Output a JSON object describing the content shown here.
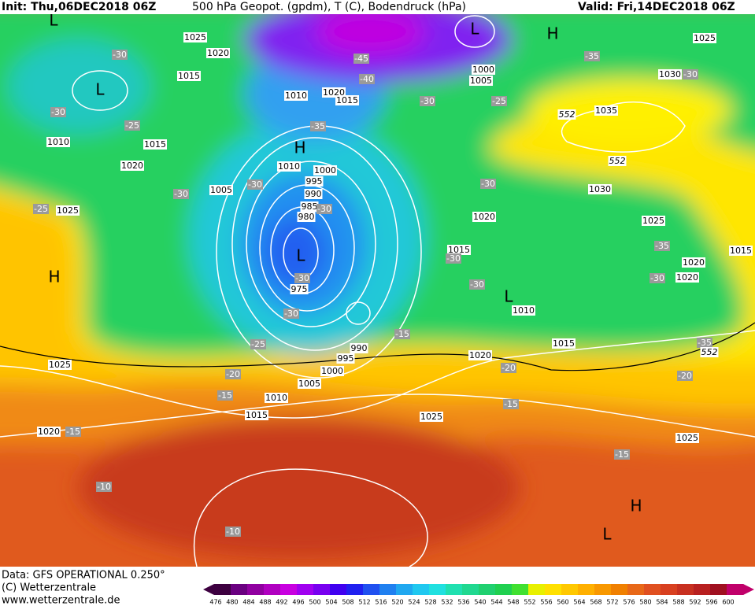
{
  "header": {
    "init": "Init: Thu,06DEC2018 06Z",
    "title": "500 hPa Geopot. (gpdm), T (C), Bodendruck (hPa)",
    "valid": "Valid: Fri,14DEC2018 06Z"
  },
  "map": {
    "pressure_labels": [
      "1025",
      "1020",
      "1015",
      "1010",
      "1020",
      "1015",
      "1010",
      "1015",
      "1020",
      "1010",
      "1000",
      "995",
      "990",
      "985",
      "980",
      "1005",
      "1025",
      "975",
      "990",
      "995",
      "1000",
      "1005",
      "1010",
      "1015",
      "1025",
      "1020",
      "1025",
      "1020",
      "1015",
      "1010",
      "1015",
      "1020",
      "1030",
      "1025",
      "1020",
      "1020",
      "1035",
      "1030",
      "1025",
      "1000",
      "1005",
      "1025",
      "1015"
    ],
    "temp_labels": [
      "-30",
      "-30",
      "-25",
      "-30",
      "-30",
      "-25",
      "-35",
      "-45",
      "-40",
      "-30",
      "-25",
      "-35",
      "-30",
      "-30",
      "-30",
      "-30",
      "-30",
      "-25",
      "-20",
      "-15",
      "-15",
      "-15",
      "-30",
      "-30",
      "-35",
      "-30",
      "-35",
      "-20",
      "-20",
      "-15",
      "-15",
      "-10",
      "-10"
    ],
    "geopot_labels": [
      "552",
      "552",
      "552"
    ],
    "centers": [
      "L",
      "L",
      "H",
      "L",
      "L",
      "H",
      "H",
      "L",
      "H",
      "L"
    ]
  },
  "footer": {
    "data": "Data: GFS OPERATIONAL 0.250°",
    "copyright": "(C) Wetterzentrale",
    "url": "www.wetterzentrale.de"
  },
  "legend": {
    "levels": [
      476,
      480,
      484,
      488,
      492,
      496,
      500,
      504,
      508,
      512,
      516,
      520,
      524,
      528,
      532,
      536,
      540,
      544,
      548,
      552,
      556,
      560,
      564,
      568,
      572,
      576,
      580,
      584,
      588,
      592,
      596,
      600
    ],
    "colors": [
      "#3d0040",
      "#6a0080",
      "#9000a0",
      "#b000c0",
      "#c800e0",
      "#a000f0",
      "#7800f0",
      "#4000f0",
      "#2020f0",
      "#2050f0",
      "#2080f0",
      "#20a8f0",
      "#20c8f0",
      "#20e0e0",
      "#20e0b0",
      "#20d890",
      "#20d070",
      "#20d050",
      "#40e030",
      "#e8f000",
      "#ffe000",
      "#ffc800",
      "#ffb000",
      "#f89800",
      "#f08000",
      "#e86818",
      "#e05020",
      "#d84020",
      "#c83020",
      "#b82020",
      "#a01020",
      "#c0006a"
    ]
  }
}
